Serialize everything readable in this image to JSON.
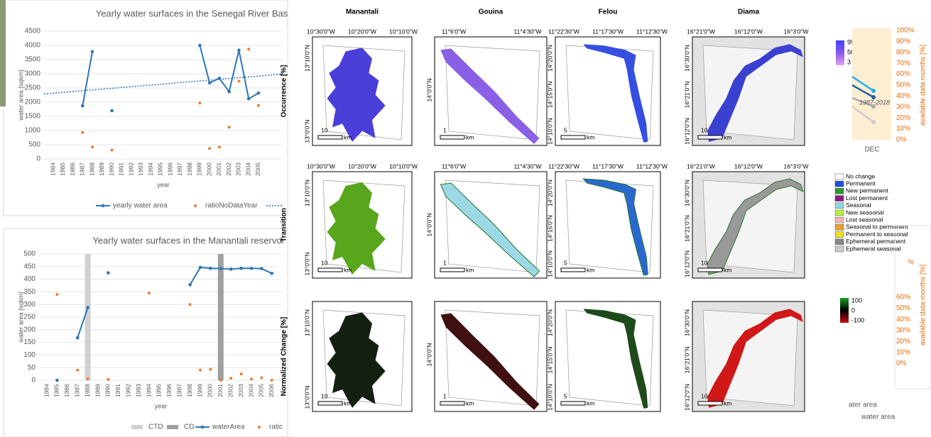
{
  "chart_data": [
    {
      "type": "line",
      "title": "Yearly water surfaces in the Senegal River Bas",
      "y_label": "water area [sqkm]",
      "x_label": "year",
      "categories": [
        "1984",
        "1985",
        "1986",
        "1987",
        "1988",
        "1989",
        "1990",
        "1991",
        "1992",
        "1993",
        "1994",
        "1995",
        "1996",
        "1997",
        "1998",
        "1999",
        "2000",
        "2001",
        "2002",
        "2003",
        "2004",
        "2005"
      ],
      "ylim": [
        0,
        4500
      ],
      "yticks": [
        0,
        500,
        1000,
        1500,
        2000,
        2500,
        3000,
        3500,
        4000,
        4500
      ],
      "series": [
        {
          "name": "yearly water area",
          "kind": "line",
          "color": "#2e75b6",
          "values": [
            null,
            null,
            null,
            1870,
            3780,
            null,
            1700,
            null,
            null,
            null,
            null,
            null,
            null,
            null,
            null,
            4000,
            2680,
            2840,
            2370,
            3830,
            2120,
            2320
          ]
        },
        {
          "name": "ratioNoDataYear",
          "kind": "dots",
          "color": "#ed7d31",
          "values": [
            null,
            null,
            null,
            930,
            420,
            null,
            310,
            null,
            null,
            null,
            null,
            null,
            null,
            null,
            null,
            1970,
            370,
            420,
            1120,
            2740,
            3870,
            1880
          ]
        }
      ],
      "trend": {
        "color": "#2e75b6",
        "values": [
          2290,
          2990
        ]
      }
    },
    {
      "type": "line",
      "title": "Yearly water surfaces in the Manantali reservoi",
      "y_label": "water area [sqkm]",
      "x_label": "year",
      "categories": [
        "1984",
        "1985",
        "1986",
        "1987",
        "1988",
        "1989",
        "1990",
        "1991",
        "1992",
        "1993",
        "1994",
        "1995",
        "1996",
        "1997",
        "1998",
        "1999",
        "2000",
        "2001",
        "2002",
        "2003",
        "2004",
        "2005",
        "2006"
      ],
      "ylim": [
        0,
        500
      ],
      "yticks": [
        0,
        50,
        100,
        150,
        200,
        250,
        300,
        350,
        400,
        450,
        500
      ],
      "series": [
        {
          "name": "CTD",
          "kind": "bar",
          "color": "#d0d0d0",
          "values": [
            null,
            null,
            null,
            null,
            500,
            null,
            null,
            null,
            null,
            null,
            null,
            null,
            null,
            null,
            null,
            null,
            null,
            null,
            null,
            null,
            null,
            null,
            null
          ]
        },
        {
          "name": "CD",
          "kind": "bar",
          "color": "#a0a0a0",
          "values": [
            null,
            null,
            null,
            null,
            null,
            null,
            null,
            null,
            null,
            null,
            null,
            null,
            null,
            null,
            null,
            null,
            null,
            500,
            null,
            null,
            null,
            null,
            null
          ]
        },
        {
          "name": "waterArea",
          "kind": "line",
          "color": "#2e75b6",
          "values": [
            null,
            0,
            null,
            168,
            288,
            null,
            425,
            null,
            null,
            null,
            null,
            null,
            null,
            null,
            378,
            447,
            443,
            442,
            440,
            443,
            443,
            442,
            423
          ]
        },
        {
          "name": "ratic",
          "kind": "dots",
          "color": "#ed7d31",
          "values": [
            null,
            340,
            null,
            40,
            5,
            null,
            3,
            null,
            null,
            null,
            345,
            null,
            null,
            null,
            300,
            40,
            43,
            0,
            8,
            25,
            5,
            10,
            0
          ]
        }
      ]
    }
  ],
  "map_panel": {
    "columns": [
      {
        "title": "Manantali",
        "top_labels": [
          "10°30'0\"W",
          "10°20'0\"W",
          "10°10'0\"W"
        ],
        "left_labels": [
          "13°10'0\"N",
          "13°0'0\"N"
        ],
        "scale": "10",
        "unit": "km"
      },
      {
        "title": "Gouina",
        "top_labels": [
          "11°6'0\"W",
          "11°4'30\"W"
        ],
        "left_labels": [
          "14°0'0\"N"
        ],
        "scale": "1",
        "unit": "km"
      },
      {
        "title": "Felou",
        "top_labels": [
          "11°22'30\"W",
          "11°17'30\"W",
          "11°12'30\"W"
        ],
        "left_labels": [
          "14°20'0\"N",
          "14°15'0\"N",
          "14°10'0\"N"
        ],
        "scale": "5",
        "unit": "km"
      },
      {
        "title": "Diama",
        "top_labels": [
          "16°21'0\"W",
          "16°12'0\"W",
          "16°3'0\"W"
        ],
        "left_labels": [
          "16°30'0\"N",
          "16°21'0\"N",
          "16°12'0\"N"
        ],
        "scale": "10",
        "unit": "km"
      }
    ],
    "rows": [
      "Occurrence [%]",
      "Transition",
      "Normalized Change [%]"
    ],
    "occurrence_legend": [
      "99",
      "50",
      "3"
    ],
    "transition_legend": [
      {
        "label": "No change",
        "color": "#ffffff"
      },
      {
        "label": "Permanent",
        "color": "#1f4fd6"
      },
      {
        "label": "New permanent",
        "color": "#2e9a2e"
      },
      {
        "label": "Lost permanent",
        "color": "#8a1a8a"
      },
      {
        "label": "Seasonal",
        "color": "#8fd6ea"
      },
      {
        "label": "New seasonal",
        "color": "#b6f03a"
      },
      {
        "label": "Lost seasonal",
        "color": "#f4b6b6"
      },
      {
        "label": "Seasonal to permanent",
        "color": "#f0a030"
      },
      {
        "label": "Permanent to seasonal",
        "color": "#f0e020"
      },
      {
        "label": "Ephemeral permanent",
        "color": "#888888"
      },
      {
        "label": "Ephemeral seasonal",
        "color": "#cccccc"
      }
    ],
    "change_legend": [
      "100",
      "0",
      "-100"
    ]
  },
  "right_fragment": {
    "upper_ticks": [
      "100%",
      "90%",
      "80%",
      "70%",
      "60%",
      "50%",
      "40%",
      "30%",
      "20%",
      "10%",
      "0%"
    ],
    "upper_axis_label": "available data months [%]",
    "period": "1987-2018",
    "month": "DEC",
    "lower_top": "%",
    "lower_ticks": [
      "60%",
      "50%",
      "40%",
      "30%",
      "20%",
      "10%",
      "0%"
    ],
    "lower_axis_label": "available data months [%]",
    "legend_fragments": [
      "ater area",
      "water area"
    ]
  }
}
